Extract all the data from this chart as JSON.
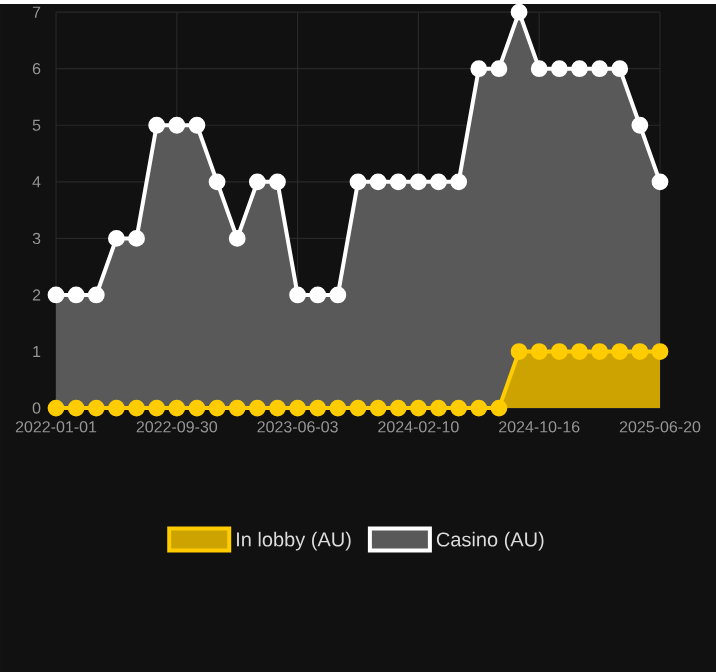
{
  "chart_data": {
    "type": "area",
    "categories": [
      "2022-01-01",
      null,
      null,
      null,
      null,
      null,
      "2022-09-30",
      null,
      null,
      null,
      null,
      null,
      "2023-06-03",
      null,
      null,
      null,
      null,
      null,
      "2024-02-10",
      null,
      null,
      null,
      null,
      null,
      "2024-10-16",
      null,
      null,
      null,
      null,
      null,
      "2025-06-20"
    ],
    "series": [
      {
        "name": "In lobby (AU)",
        "color": "#ffcc00",
        "values": [
          0,
          0,
          0,
          0,
          0,
          0,
          0,
          0,
          0,
          0,
          0,
          0,
          0,
          0,
          0,
          0,
          0,
          0,
          0,
          0,
          0,
          0,
          0,
          1,
          1,
          1,
          1,
          1,
          1,
          1,
          1
        ]
      },
      {
        "name": "Casino (AU)",
        "color": "#ffffff",
        "values": [
          2,
          2,
          2,
          3,
          3,
          5,
          5,
          5,
          4,
          3,
          4,
          4,
          2,
          2,
          2,
          4,
          4,
          4,
          4,
          4,
          4,
          6,
          6,
          7,
          6,
          6,
          6,
          6,
          6,
          5,
          4
        ]
      }
    ],
    "ylim": [
      0,
      7
    ],
    "yticks": [
      0,
      1,
      2,
      3,
      4,
      5,
      6,
      7
    ],
    "grid": true,
    "legend": "bottom",
    "marker": "circle",
    "line_style": "solid"
  }
}
